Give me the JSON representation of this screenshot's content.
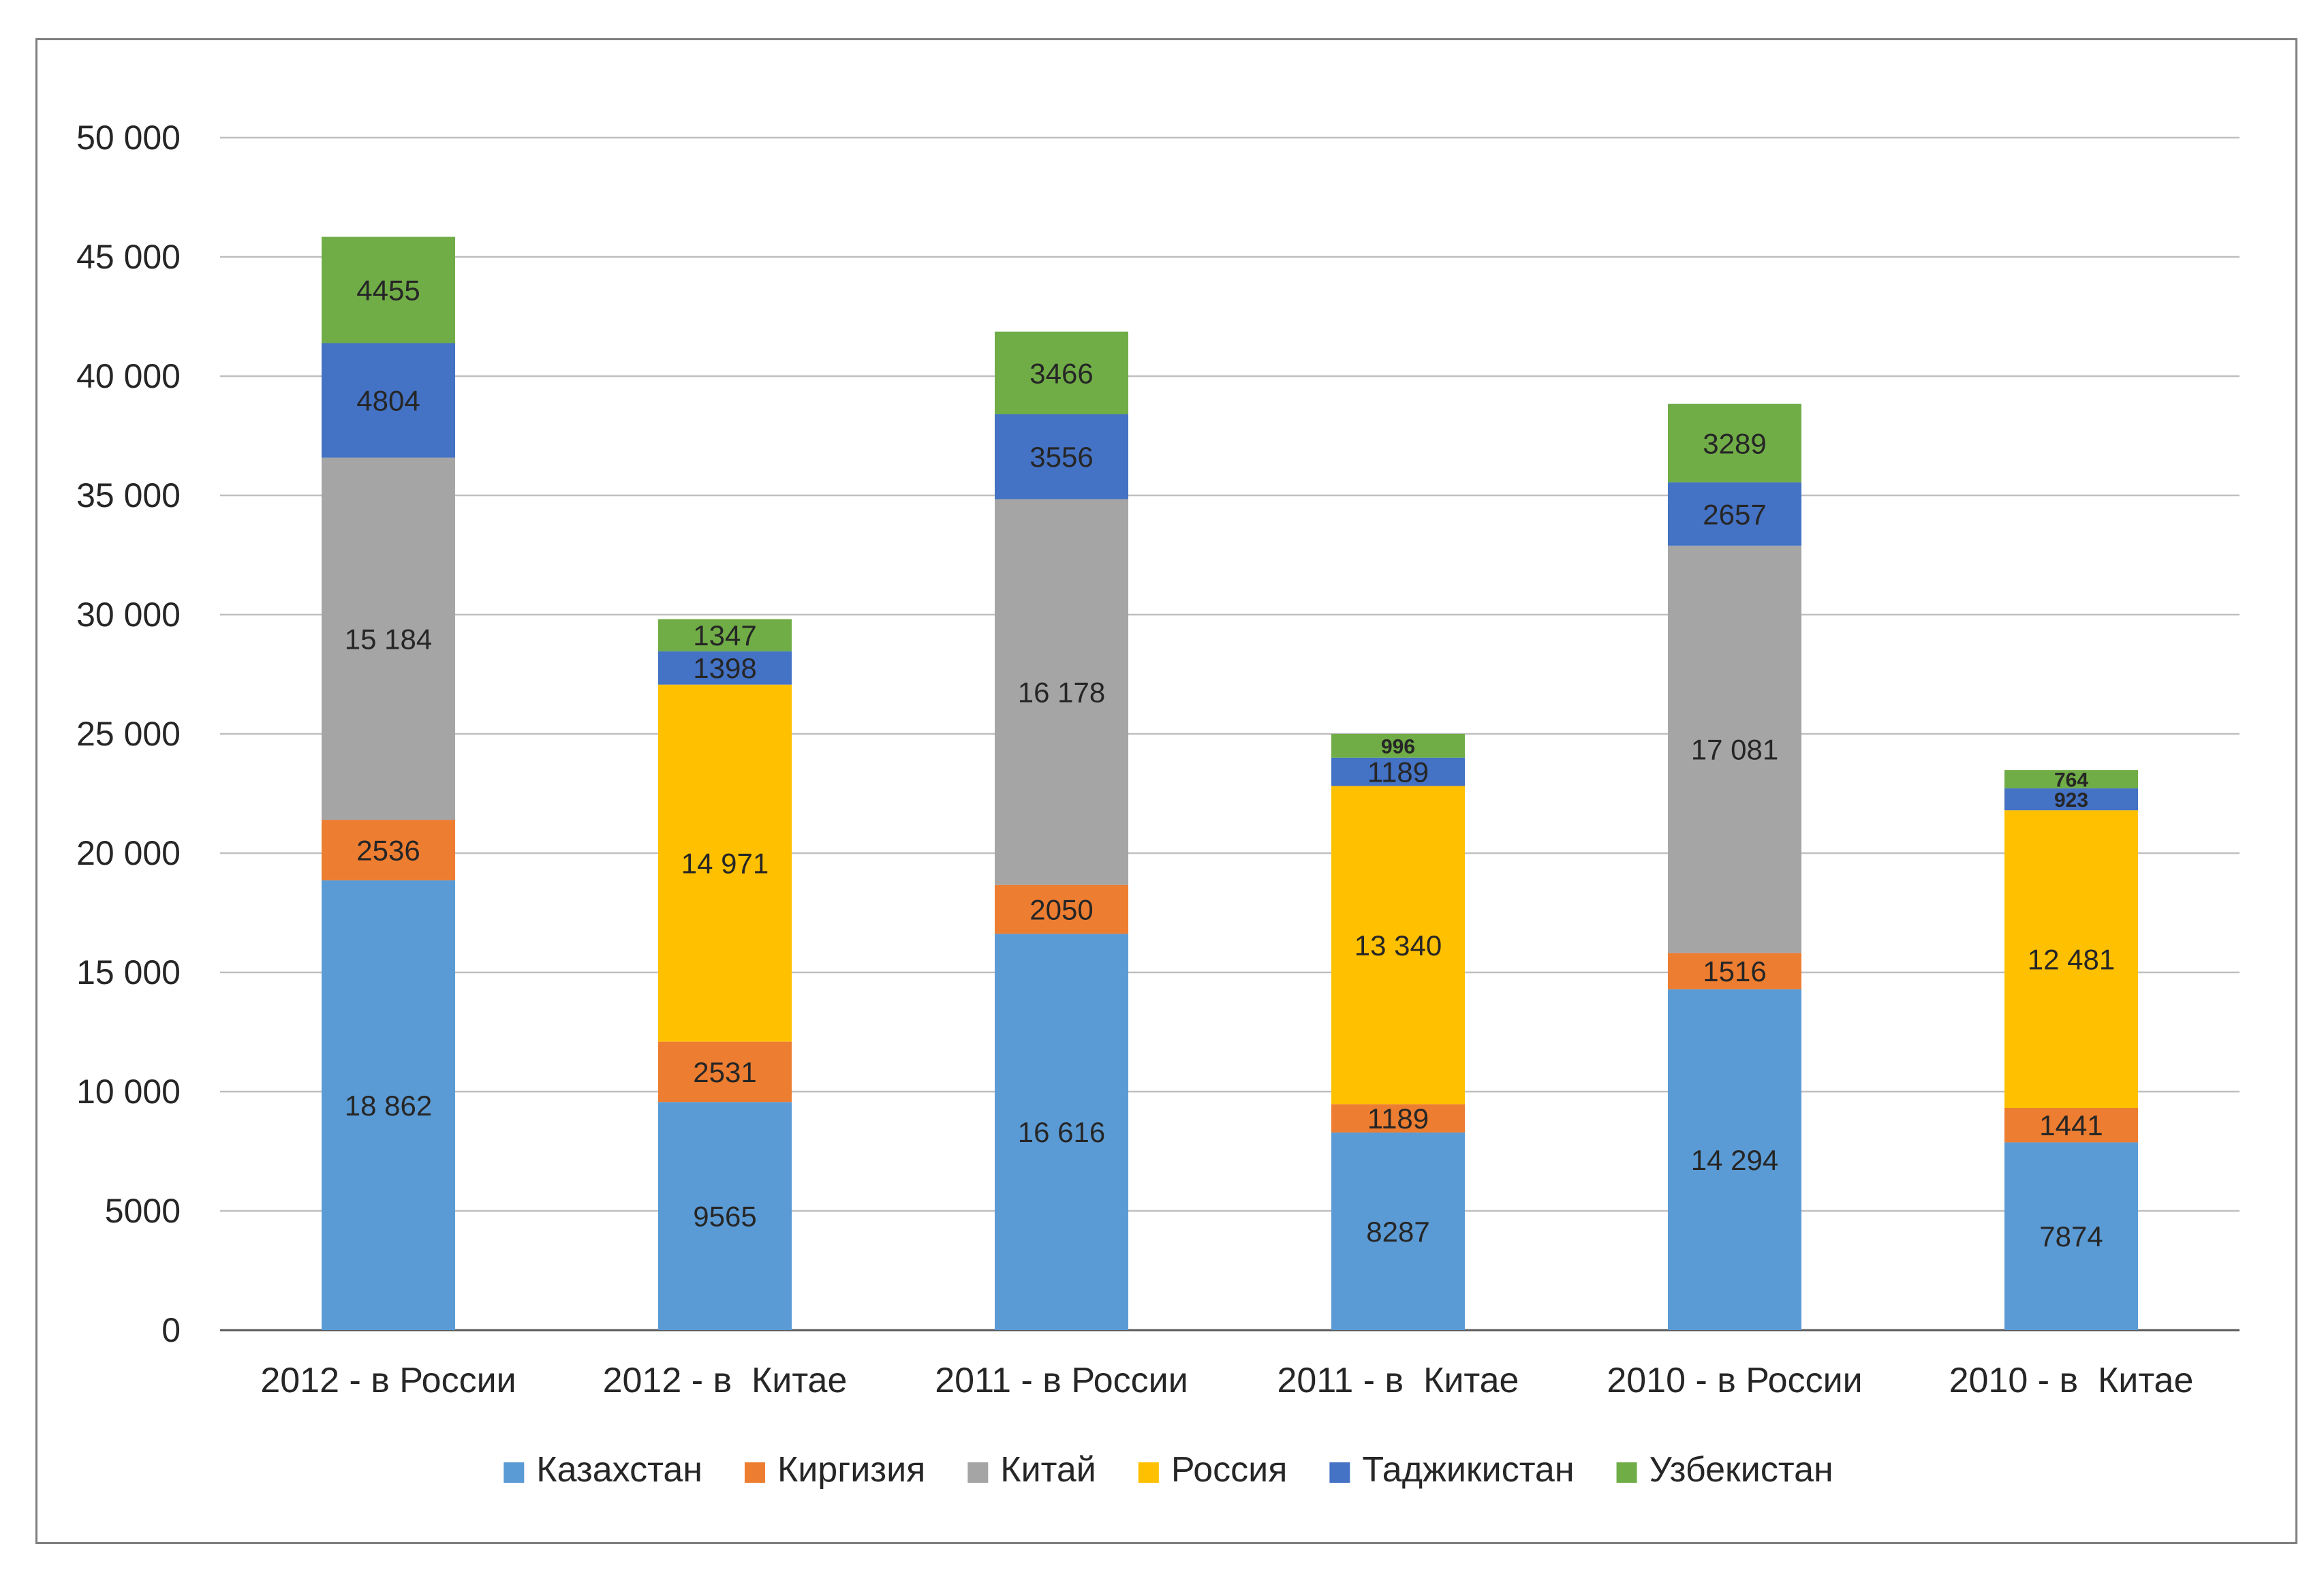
{
  "chart_data": {
    "type": "bar",
    "stacked": true,
    "categories": [
      "2012 - в России",
      "2012 - в  Китае",
      "2011 - в России",
      "2011 - в  Китае",
      "2010 - в России",
      "2010 - в  Китае"
    ],
    "series": [
      {
        "name": "Казахстан",
        "color": "#5b9bd5",
        "values": [
          18862,
          9565,
          16616,
          8287,
          14294,
          7874
        ],
        "labels": [
          "18 862",
          "9565",
          "16 616",
          "8287",
          "14 294",
          "7874"
        ]
      },
      {
        "name": "Киргизия",
        "color": "#ed7d31",
        "values": [
          2536,
          2531,
          2050,
          1189,
          1516,
          1441
        ],
        "labels": [
          "2536",
          "2531",
          "2050",
          "1189",
          "1516",
          "1441"
        ]
      },
      {
        "name": "Китай",
        "color": "#a5a5a5",
        "values": [
          15184,
          0,
          16178,
          0,
          17081,
          0
        ],
        "labels": [
          "15 184",
          "",
          "16 178",
          "",
          "17 081",
          ""
        ]
      },
      {
        "name": "Россия",
        "color": "#ffc000",
        "values": [
          0,
          14971,
          0,
          13340,
          0,
          12481
        ],
        "labels": [
          "",
          "14 971",
          "",
          "13 340",
          "",
          "12 481"
        ]
      },
      {
        "name": "Таджикистан",
        "color": "#4472c4",
        "values": [
          4804,
          1398,
          3556,
          1189,
          2657,
          923
        ],
        "labels": [
          "4804",
          "1398",
          "3556",
          "1189",
          "2657",
          "923"
        ]
      },
      {
        "name": "Узбекистан",
        "color": "#70ad47",
        "values": [
          4455,
          1347,
          3466,
          996,
          3289,
          764
        ],
        "labels": [
          "4455",
          "1347",
          "3466",
          "996",
          "3289",
          "764"
        ]
      }
    ],
    "ylim": [
      0,
      50000
    ],
    "yticks": [
      0,
      5000,
      10000,
      15000,
      20000,
      25000,
      30000,
      35000,
      40000,
      45000,
      50000
    ],
    "ytick_labels": [
      "0",
      "5000",
      "10 000",
      "15 000",
      "20 000",
      "25 000",
      "30 000",
      "35 000",
      "40 000",
      "45 000",
      "50 000"
    ],
    "grid": true,
    "legend_position": "bottom",
    "title": "",
    "xlabel": "",
    "ylabel": ""
  }
}
